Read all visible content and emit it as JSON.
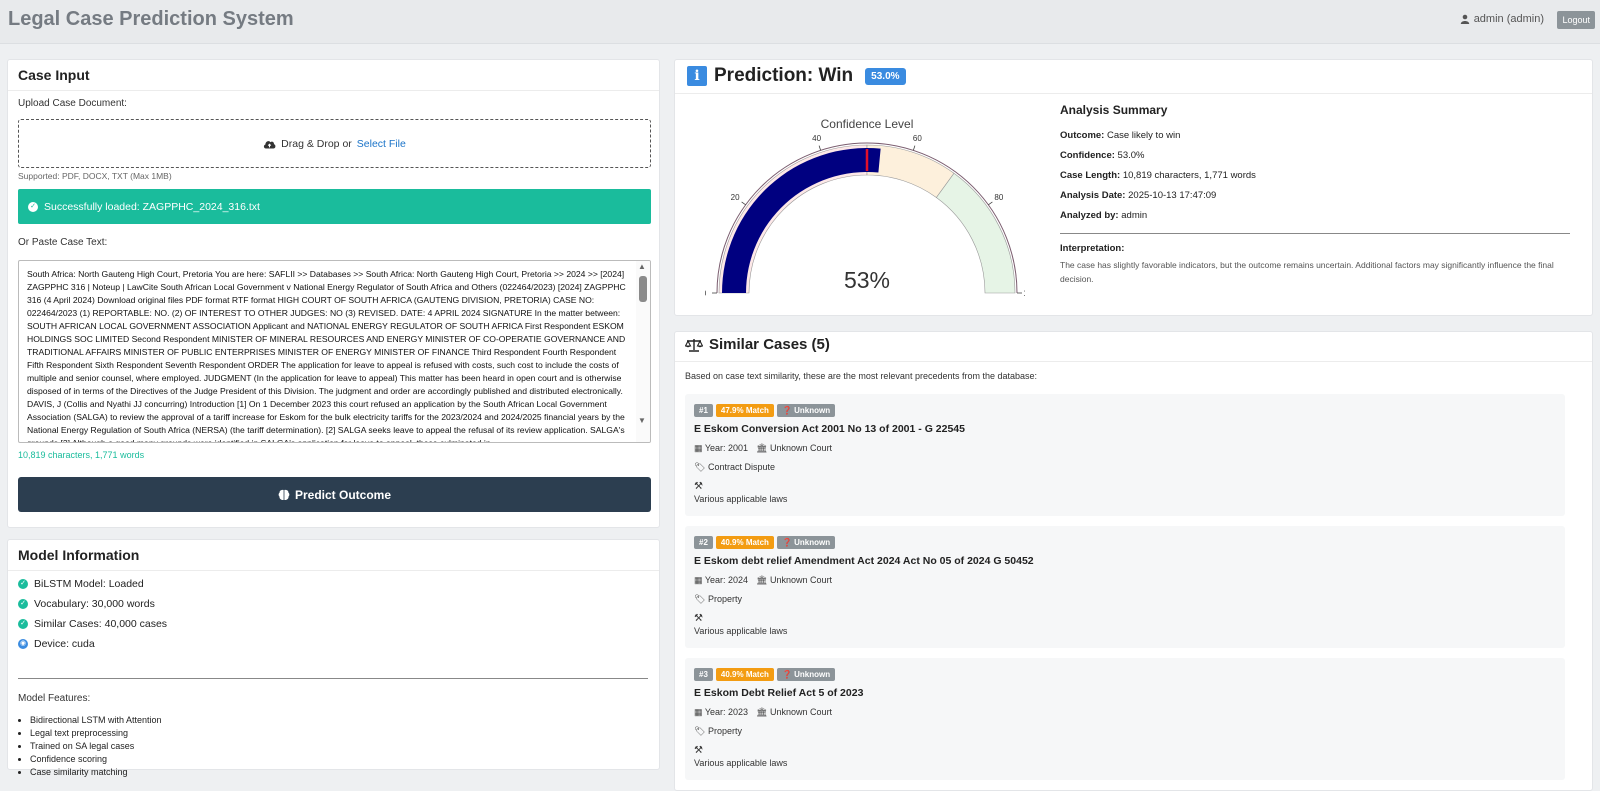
{
  "header": {
    "app_title": "Legal Case Prediction System",
    "user_label": "admin (admin)",
    "logout_label": "Logout"
  },
  "case_input": {
    "title": "Case Input",
    "upload_label": "Upload Case Document:",
    "dropzone_text": "Drag & Drop or",
    "select_file": "Select File",
    "supported": "Supported: PDF, DOCX, TXT (Max 1MB)",
    "success_msg": "Successfully loaded: ZAGPPHC_2024_316.txt",
    "paste_label": "Or Paste Case Text:",
    "case_text": "South Africa: North Gauteng High Court, Pretoria You are here: SAFLII >> Databases >> South Africa: North Gauteng High Court, Pretoria >> 2024 >> [2024] ZAGPPHC 316 | Noteup | LawCite South African Local Government v National Energy Regulator of South Africa and Others (022464/2023) [2024] ZAGPPHC 316 (4 April 2024) Download original files PDF format RTF format HIGH COURT OF SOUTH AFRICA (GAUTENG DIVISION, PRETORIA) CASE NO: 022464/2023 (1) REPORTABLE: NO. (2) OF INTEREST TO OTHER JUDGES: NO (3) REVISED. DATE: 4 APRIL 2024 SIGNATURE In the matter between: SOUTH AFRICAN LOCAL GOVERNMENT ASSOCIATION Applicant and NATIONAL ENERGY REGULATOR OF SOUTH AFRICA First Respondent ESKOM HOLDINGS SOC LIMITED Second Respondent MINISTER OF MINERAL RESOURCES AND ENERGY MINISTER OF CO-OPERATIE GOVERNANCE AND TRADITIONAL AFFAIRS MINISTER OF PUBLIC ENTERPRISES MINISTER OF ENERGY MINISTER OF FINANCE Third Respondent Fourth Respondent Fifth Respondent Sixth Respondent Seventh Respondent ORDER The application for leave to appeal is refused with costs, such cost to include the costs of multiple and senior counsel, where employed. JUDGMENT (In the application for leave to appeal) This matter has been heard in open court and is otherwise disposed of in terms of the Directives of the Judge President of this Division. The judgment and order are accordingly published and distributed electronically. DAVIS, J (Collis and Nyathi JJ concurring) Introduction [1] On 1 December 2023 this court refused an application by the South African Local Government Association (SALGA) to review the approval of a tariff increase for Eskom for the bulk electricity tariffs for the 2023/2024 and 2024/2025 financial years by the National Energy Regulation of South Africa (NERSA) (the tariff determination). [2] SALGA seeks leave to appeal the refusal of its review application. SALGA's grounds [3] Although a good many grounds were identified in SALGA's application for leave to appeal, these culminated in",
    "counter": "10,819 characters, 1,771 words",
    "predict_label": "Predict Outcome"
  },
  "model_info": {
    "title": "Model Information",
    "items": [
      {
        "label": "BiLSTM Model: Loaded",
        "icon": "check-circle-icon"
      },
      {
        "label": "Vocabulary: 30,000 words",
        "icon": "check-circle-icon"
      },
      {
        "label": "Similar Cases: 40,000 cases",
        "icon": "check-circle-icon"
      },
      {
        "label": "Device: cuda",
        "icon": "device-icon"
      }
    ],
    "features_label": "Model Features:",
    "features": [
      "Bidirectional LSTM with Attention",
      "Legal text preprocessing",
      "Trained on SA legal cases",
      "Confidence scoring",
      "Case similarity matching"
    ]
  },
  "prediction": {
    "title": "Prediction: Win",
    "badge": "53.0%",
    "gauge": {
      "title": "Confidence Level",
      "value": 53,
      "display": "53%",
      "min": 0,
      "max": 100,
      "ticks": [
        "0",
        "20",
        "40",
        "60",
        "80",
        "100"
      ],
      "bands": [
        {
          "from": 0,
          "to": 50,
          "color": "#fde8e8"
        },
        {
          "from": 50,
          "to": 70,
          "color": "#fdf0dc"
        },
        {
          "from": 70,
          "to": 100,
          "color": "#e6f4e6"
        }
      ],
      "bar_color": "#000080",
      "threshold_color": "#e0102a"
    },
    "summary": {
      "title": "Analysis Summary",
      "rows": [
        {
          "k": "Outcome:",
          "v": "Case likely to win"
        },
        {
          "k": "Confidence:",
          "v": "53.0%"
        },
        {
          "k": "Case Length:",
          "v": "10,819 characters, 1,771 words"
        },
        {
          "k": "Analysis Date:",
          "v": "2025-10-13 17:47:09"
        },
        {
          "k": "Analyzed by:",
          "v": "admin"
        }
      ],
      "interp_label": "Interpretation:",
      "interp_text": "The case has slightly favorable indicators, but the outcome remains uncertain. Additional factors may significantly influence the final decision."
    }
  },
  "similar": {
    "title": "Similar Cases (5)",
    "subtitle": "Based on case text similarity, these are the most relevant precedents from the database:",
    "cases": [
      {
        "num": "#1",
        "match": "47.9% Match",
        "status": "Unknown",
        "title": "E Eskom Conversion Act 2001 No 13 of 2001 - G 22545",
        "year": "Year: 2001",
        "court": "Unknown Court",
        "type": "Contract Dispute",
        "laws": "Various applicable laws"
      },
      {
        "num": "#2",
        "match": "40.9% Match",
        "status": "Unknown",
        "title": "E Eskom debt relief Amendment Act 2024 Act No 05 of 2024 G 50452",
        "year": "Year: 2024",
        "court": "Unknown Court",
        "type": "Property",
        "laws": "Various applicable laws"
      },
      {
        "num": "#3",
        "match": "40.9% Match",
        "status": "Unknown",
        "title": "E Eskom Debt Relief Act 5 of 2023",
        "year": "Year: 2023",
        "court": "Unknown Court",
        "type": "Property",
        "laws": "Various applicable laws"
      }
    ]
  }
}
